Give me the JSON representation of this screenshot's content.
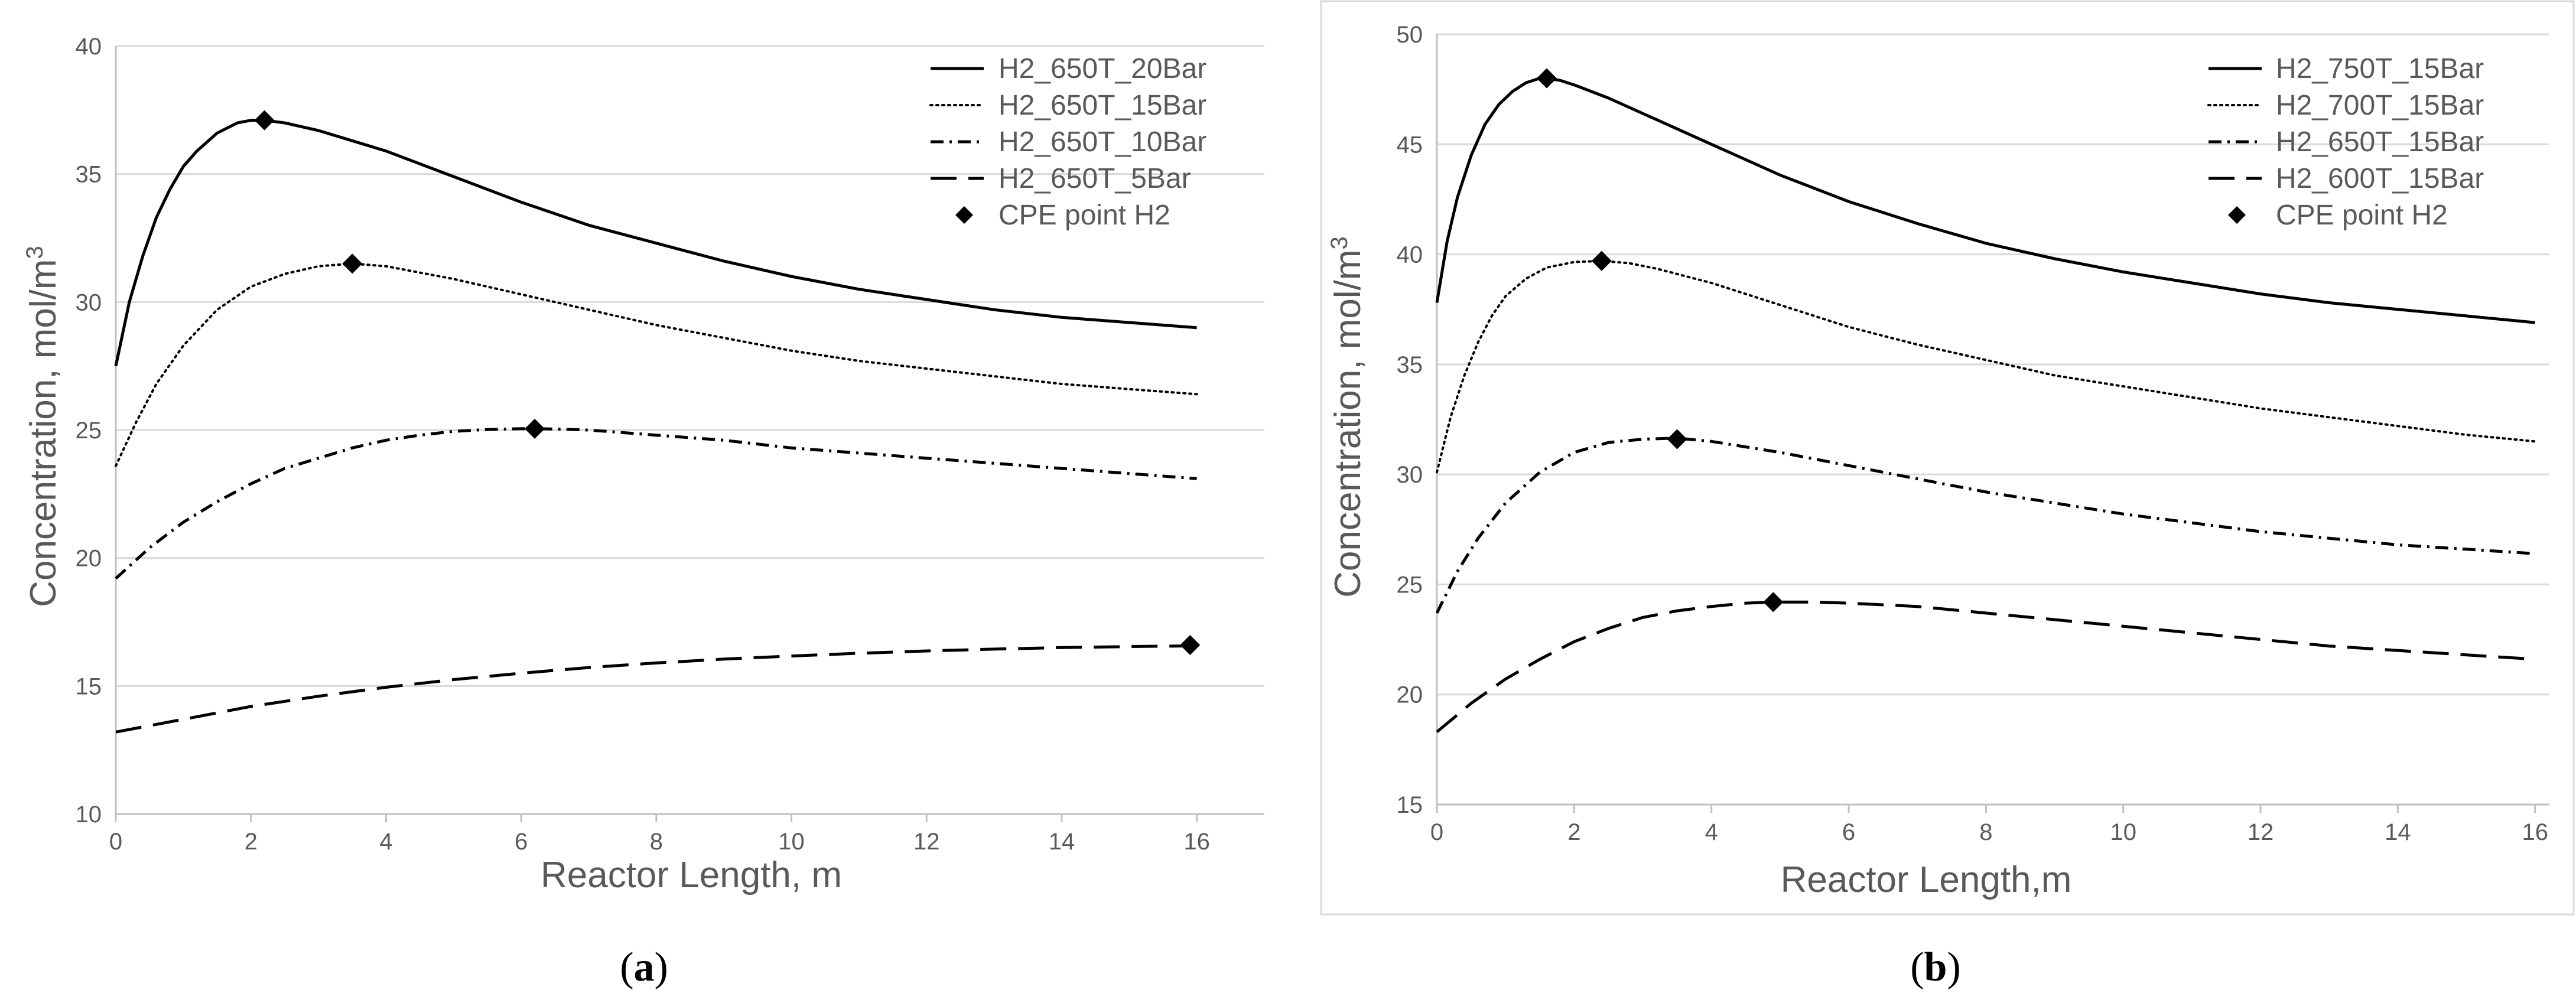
{
  "colors": {
    "line": "#000000",
    "grid": "#d9d9d9",
    "axis": "#bfbfbf",
    "text": "#595959",
    "frame": "#d9d9d9"
  },
  "chart_data": [
    {
      "type": "line",
      "panel": "a",
      "caption_open": "(",
      "caption_letter": "a",
      "caption_close": ")",
      "xlabel": "Reactor Length, m",
      "ylabel_main": "Concentration, mol/m",
      "ylabel_sup": "3",
      "xlim": [
        0,
        17
      ],
      "ylim": [
        10,
        40
      ],
      "xticks": [
        0,
        2,
        4,
        6,
        8,
        10,
        12,
        14,
        16
      ],
      "yticks": [
        10,
        15,
        20,
        25,
        30,
        35,
        40
      ],
      "grid": true,
      "legend_position": "top-right",
      "series": [
        {
          "name": "H2_650T_20Bar",
          "style": "solid",
          "x": [
            0,
            0.2,
            0.4,
            0.6,
            0.8,
            1.0,
            1.2,
            1.5,
            1.8,
            2.0,
            2.2,
            2.5,
            3,
            3.5,
            4,
            5,
            6,
            7,
            8,
            9,
            10,
            11,
            12,
            13,
            14,
            15,
            16
          ],
          "y": [
            27.5,
            30.0,
            31.8,
            33.3,
            34.4,
            35.3,
            35.9,
            36.6,
            37.0,
            37.1,
            37.1,
            37.0,
            36.7,
            36.3,
            35.9,
            34.9,
            33.9,
            33.0,
            32.3,
            31.6,
            31.0,
            30.5,
            30.1,
            29.7,
            29.4,
            29.2,
            29.0
          ]
        },
        {
          "name": "H2_650T_15Bar",
          "style": "dotted",
          "x": [
            0,
            0.3,
            0.6,
            1.0,
            1.5,
            2.0,
            2.5,
            3.0,
            3.5,
            4,
            5,
            6,
            7,
            8,
            9,
            10,
            11,
            12,
            13,
            14,
            15,
            16
          ],
          "y": [
            23.6,
            25.3,
            26.8,
            28.3,
            29.7,
            30.6,
            31.1,
            31.4,
            31.5,
            31.4,
            30.9,
            30.3,
            29.7,
            29.1,
            28.6,
            28.1,
            27.7,
            27.4,
            27.1,
            26.8,
            26.6,
            26.4
          ]
        },
        {
          "name": "H2_650T_10Bar",
          "style": "dashdot",
          "x": [
            0,
            0.5,
            1,
            1.5,
            2,
            2.5,
            3,
            3.5,
            4,
            4.5,
            5,
            5.5,
            6,
            6.2,
            6.5,
            7,
            8,
            9,
            10,
            11,
            12,
            13,
            14,
            15,
            16
          ],
          "y": [
            19.2,
            20.4,
            21.4,
            22.2,
            22.9,
            23.5,
            23.9,
            24.3,
            24.6,
            24.8,
            24.95,
            25.02,
            25.05,
            25.05,
            25.04,
            25.0,
            24.8,
            24.6,
            24.3,
            24.1,
            23.9,
            23.7,
            23.5,
            23.3,
            23.1
          ]
        },
        {
          "name": "H2_650T_5Bar",
          "style": "dashed",
          "x": [
            0,
            1,
            2,
            3,
            4,
            5,
            6,
            7,
            8,
            9,
            10,
            11,
            12,
            13,
            14,
            15,
            16
          ],
          "y": [
            13.2,
            13.7,
            14.2,
            14.6,
            14.95,
            15.25,
            15.5,
            15.72,
            15.9,
            16.05,
            16.17,
            16.28,
            16.37,
            16.44,
            16.5,
            16.54,
            16.57
          ]
        }
      ],
      "markers": {
        "name": "CPE point H2",
        "x": [
          2.2,
          3.5,
          6.2,
          15.9
        ],
        "y": [
          37.1,
          31.5,
          25.05,
          16.6
        ]
      }
    },
    {
      "type": "line",
      "panel": "b",
      "caption_open": "(",
      "caption_letter": "b",
      "caption_close": ")",
      "xlabel": "Reactor Length,m",
      "ylabel_main": "Concentration, mol/m",
      "ylabel_sup": "3",
      "xlim": [
        0,
        16.2
      ],
      "ylim": [
        15,
        50
      ],
      "xticks": [
        0,
        2,
        4,
        6,
        8,
        10,
        12,
        14,
        16
      ],
      "yticks": [
        15,
        20,
        25,
        30,
        35,
        40,
        45,
        50
      ],
      "grid": true,
      "legend_position": "top-right",
      "series": [
        {
          "name": "H2_750T_15Bar",
          "style": "solid",
          "x": [
            0,
            0.15,
            0.3,
            0.5,
            0.7,
            0.9,
            1.1,
            1.3,
            1.5,
            1.6,
            1.8,
            2.0,
            2.5,
            3,
            3.5,
            4,
            5,
            6,
            7,
            8,
            9,
            10,
            11,
            12,
            13,
            14,
            15,
            16
          ],
          "y": [
            37.8,
            40.6,
            42.6,
            44.5,
            45.9,
            46.8,
            47.4,
            47.8,
            48.0,
            48.0,
            47.9,
            47.7,
            47.1,
            46.4,
            45.7,
            45.0,
            43.6,
            42.4,
            41.4,
            40.5,
            39.8,
            39.2,
            38.7,
            38.2,
            37.8,
            37.5,
            37.2,
            36.9
          ]
        },
        {
          "name": "H2_700T_15Bar",
          "style": "dotted",
          "x": [
            0,
            0.2,
            0.4,
            0.6,
            0.8,
            1.0,
            1.3,
            1.6,
            2.0,
            2.4,
            2.8,
            3.2,
            4,
            5,
            6,
            7,
            8,
            9,
            10,
            11,
            12,
            13,
            14,
            15,
            16
          ],
          "y": [
            30.1,
            32.6,
            34.5,
            36.0,
            37.2,
            38.1,
            38.9,
            39.4,
            39.65,
            39.7,
            39.6,
            39.35,
            38.7,
            37.7,
            36.7,
            35.9,
            35.2,
            34.5,
            34.0,
            33.5,
            33.0,
            32.6,
            32.2,
            31.8,
            31.5
          ]
        },
        {
          "name": "H2_650T_15Bar",
          "style": "dashdot",
          "x": [
            0,
            0.3,
            0.6,
            1.0,
            1.5,
            2.0,
            2.5,
            3.0,
            3.5,
            4,
            5,
            6,
            7,
            8,
            9,
            10,
            11,
            12,
            13,
            14,
            15,
            16
          ],
          "y": [
            23.7,
            25.6,
            27.1,
            28.7,
            30.1,
            31.0,
            31.45,
            31.6,
            31.65,
            31.5,
            31.0,
            30.4,
            29.8,
            29.2,
            28.7,
            28.2,
            27.8,
            27.4,
            27.1,
            26.8,
            26.6,
            26.4
          ]
        },
        {
          "name": "H2_600T_15Bar",
          "style": "dashed",
          "x": [
            0,
            0.5,
            1,
            1.5,
            2,
            2.5,
            3,
            3.5,
            4,
            4.5,
            4.9,
            5.5,
            6,
            7,
            8,
            9,
            10,
            11,
            12,
            13,
            14,
            15,
            16
          ],
          "y": [
            18.3,
            19.6,
            20.7,
            21.6,
            22.4,
            23.0,
            23.5,
            23.8,
            24.0,
            24.15,
            24.2,
            24.2,
            24.15,
            24.0,
            23.7,
            23.4,
            23.1,
            22.8,
            22.5,
            22.2,
            22.0,
            21.8,
            21.6
          ]
        }
      ],
      "markers": {
        "name": "CPE point H2",
        "x": [
          1.6,
          2.4,
          3.5,
          4.9
        ],
        "y": [
          48.0,
          39.7,
          31.6,
          24.2
        ]
      }
    }
  ]
}
